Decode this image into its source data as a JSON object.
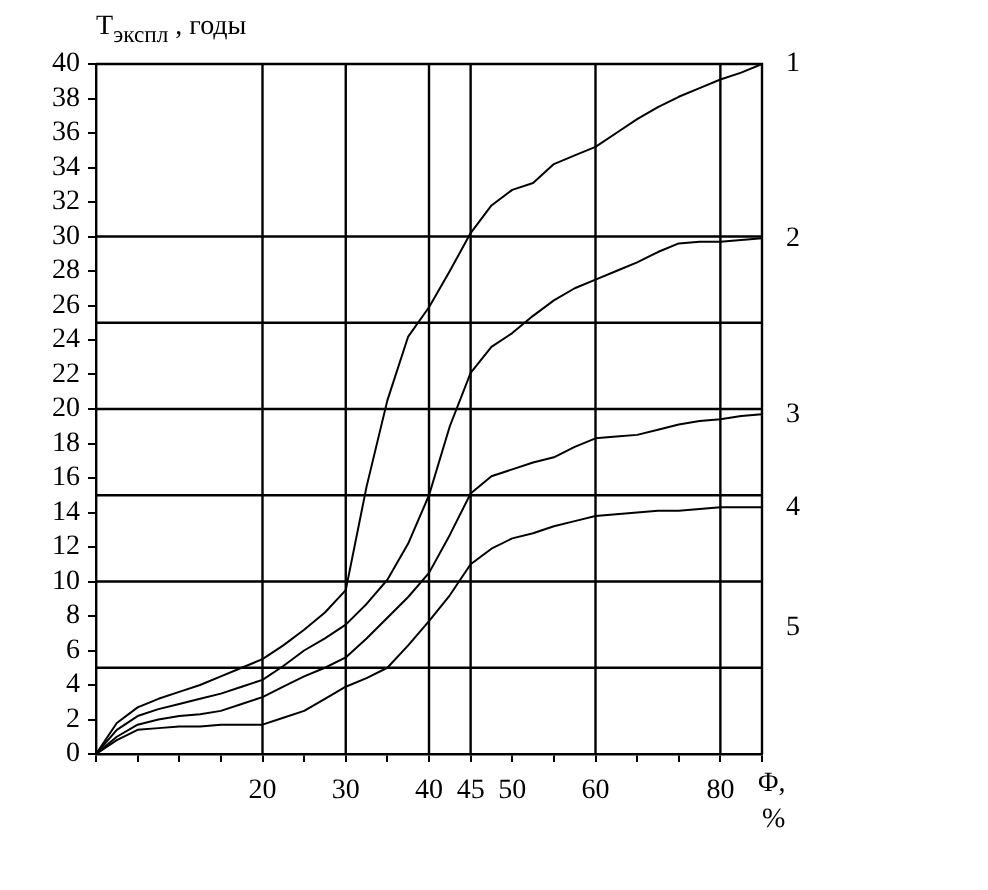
{
  "chart_data": {
    "type": "line",
    "ylabel": "T$_{экспл}$ , годы",
    "xlabel": "Φ, %",
    "categories": [
      null,
      null,
      null,
      null,
      null,
      null,
      null,
      null,
      "20",
      null,
      null,
      null,
      "30",
      null,
      null,
      null,
      "40",
      null,
      "45",
      null,
      "50",
      null,
      null,
      null,
      "60",
      null,
      null,
      null,
      null,
      null,
      "80",
      null,
      null
    ],
    "ylim": [
      0,
      40
    ],
    "yticks": [
      0,
      2,
      4,
      6,
      8,
      10,
      12,
      14,
      16,
      18,
      20,
      22,
      24,
      26,
      28,
      30,
      32,
      34,
      36,
      38,
      40
    ],
    "grid": false,
    "legend": false,
    "marker": "none",
    "line_style": "solid",
    "ref_lines": [
      {
        "axis": "y",
        "value": 5
      },
      {
        "axis": "y",
        "value": 10
      },
      {
        "axis": "y",
        "value": 15
      },
      {
        "axis": "y",
        "value": 20
      },
      {
        "axis": "y",
        "value": 25
      },
      {
        "axis": "y",
        "value": 30
      },
      {
        "axis": "x",
        "value": "20"
      },
      {
        "axis": "x",
        "value": "30"
      },
      {
        "axis": "x",
        "value": "40"
      },
      {
        "axis": "x",
        "value": "45"
      },
      {
        "axis": "x",
        "value": "60"
      },
      {
        "axis": "x",
        "value": "80"
      }
    ],
    "annotations": [
      "5"
    ],
    "series": [
      {
        "name": "1",
        "color": "#000000",
        "values": [
          0,
          1.8,
          2.7,
          3.2,
          3.6,
          4.0,
          4.5,
          5.0,
          5.5,
          6.3,
          7.2,
          8.2,
          9.5,
          15.5,
          20.5,
          24.2,
          25.9,
          28.0,
          30.2,
          31.8,
          32.7,
          33.1,
          34.2,
          34.7,
          35.2,
          36.0,
          36.8,
          37.5,
          38.1,
          38.6,
          39.1,
          39.5,
          40
        ]
      },
      {
        "name": "2",
        "color": "#000000",
        "values": [
          0,
          1.4,
          2.2,
          2.6,
          2.9,
          3.2,
          3.5,
          3.9,
          4.3,
          5.1,
          6.0,
          6.7,
          7.5,
          8.7,
          10.1,
          12.2,
          15.0,
          19.0,
          22.1,
          23.6,
          24.4,
          25.4,
          26.3,
          27.0,
          27.5,
          28.0,
          28.5,
          29.1,
          29.6,
          29.7,
          29.7,
          29.8,
          29.9
        ]
      },
      {
        "name": "3",
        "color": "#000000",
        "values": [
          0,
          1.0,
          1.7,
          2.0,
          2.2,
          2.3,
          2.5,
          2.9,
          3.3,
          3.9,
          4.5,
          5.0,
          5.6,
          6.7,
          7.9,
          9.1,
          10.5,
          12.7,
          15.1,
          16.1,
          16.5,
          16.9,
          17.2,
          17.8,
          18.3,
          18.4,
          18.5,
          18.8,
          19.1,
          19.3,
          19.4,
          19.6,
          19.7
        ]
      },
      {
        "name": "4",
        "color": "#000000",
        "values": [
          0,
          0.8,
          1.4,
          1.5,
          1.6,
          1.6,
          1.7,
          1.7,
          1.7,
          2.1,
          2.5,
          3.2,
          3.9,
          4.4,
          5.0,
          6.3,
          7.7,
          9.2,
          11.0,
          11.9,
          12.5,
          12.8,
          13.2,
          13.5,
          13.8,
          13.9,
          14.0,
          14.1,
          14.1,
          14.2,
          14.3,
          14.3,
          14.3
        ]
      }
    ]
  }
}
